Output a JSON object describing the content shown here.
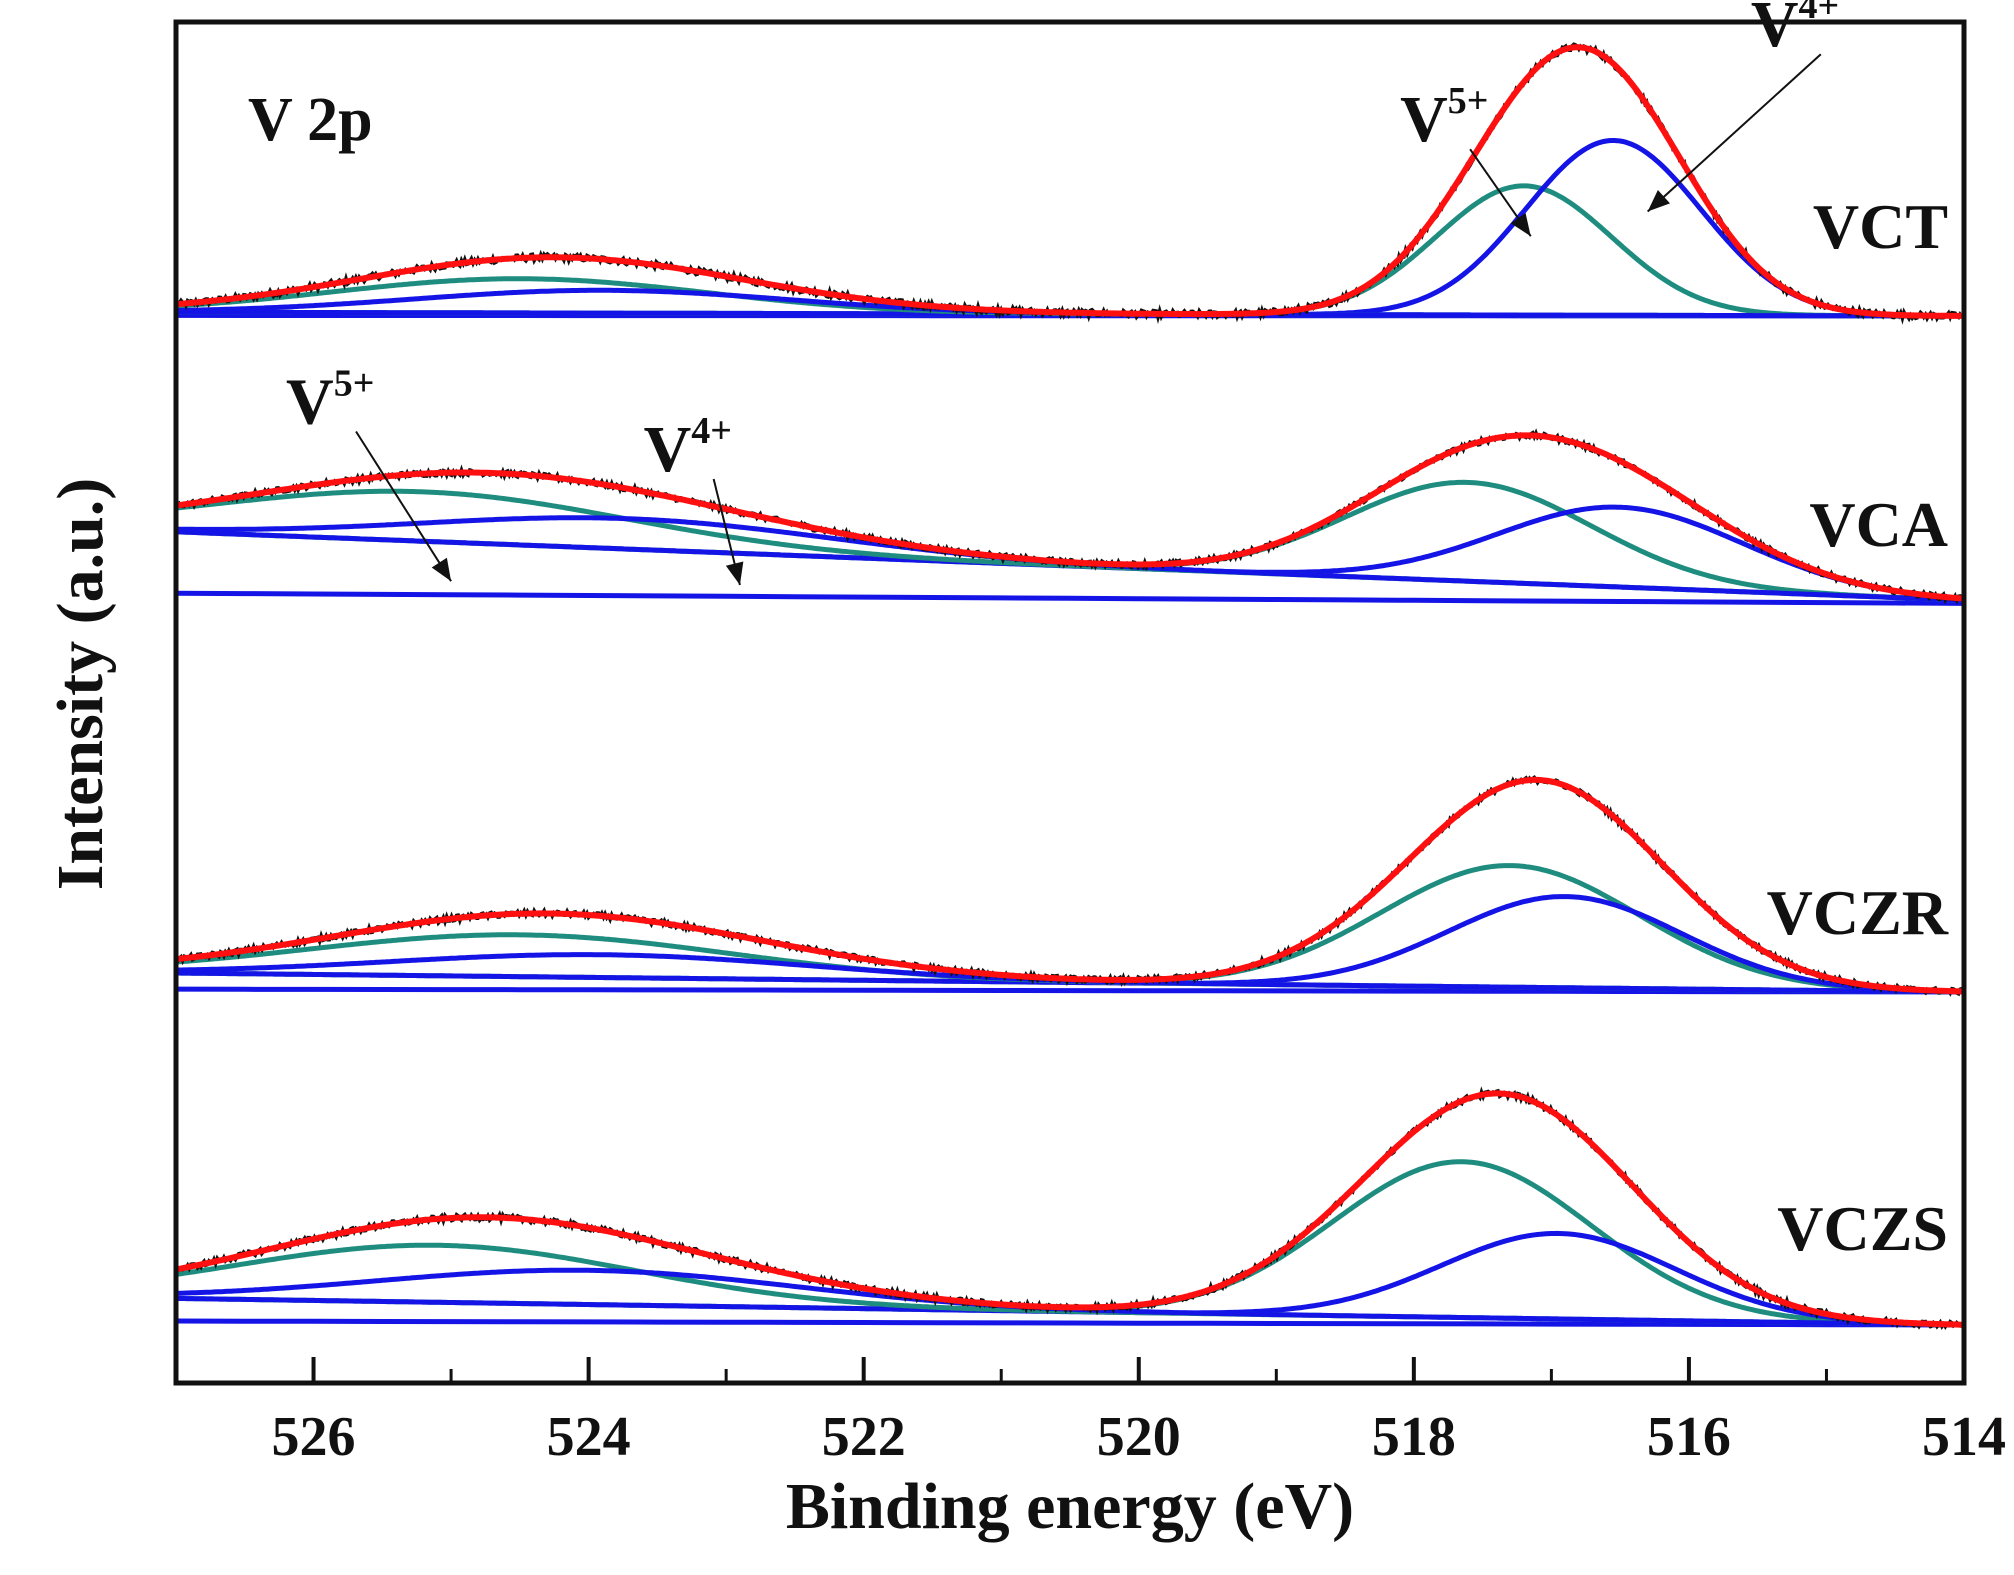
{
  "chart_data": {
    "type": "line",
    "title": "V 2p",
    "xlabel": "Binding energy (eV)",
    "ylabel": "Intensity (a.u.)",
    "xlim": [
      527,
      514
    ],
    "x_reversed": true,
    "ticks": [
      526,
      524,
      522,
      520,
      518,
      516,
      514
    ],
    "minor_ticks": [
      527,
      525,
      523,
      521,
      519,
      517,
      515
    ],
    "y_ticks_shown": false,
    "colors": {
      "experimental": "#111111",
      "fit_envelope": "#ff1010",
      "V5+": "#1e8c7e",
      "V4+": "#1414e6",
      "baseline": "#1414e6"
    },
    "component_legend": [
      "V5+",
      "V4+"
    ],
    "panels": [
      {
        "sample": "VCT",
        "baseline_from": 0.02,
        "baseline_to": 0.0,
        "noise": 0.018,
        "components": [
          {
            "name": "V5+",
            "center": 517.2,
            "height": 0.68,
            "fwhm": 1.5
          },
          {
            "name": "V4+",
            "center": 516.55,
            "height": 0.92,
            "fwhm": 1.5
          },
          {
            "name": "V5+",
            "center": 524.5,
            "height": 0.18,
            "fwhm": 3.2
          },
          {
            "name": "V4+",
            "center": 523.9,
            "height": 0.12,
            "fwhm": 3.2
          }
        ],
        "annotations": [
          {
            "label": "V",
            "sup": "5+",
            "text_at": [
              518.1,
              0.92
            ],
            "arrow_to": [
              517.15,
              0.42
            ]
          },
          {
            "label": "V",
            "sup": "4+",
            "text_at": [
              515.55,
              1.42
            ],
            "arrow_to": [
              516.3,
              0.55
            ]
          }
        ]
      },
      {
        "sample": "VCA",
        "baseline_from": 0.38,
        "baseline_to": 0.02,
        "noise": 0.015,
        "components": [
          {
            "name": "V5+",
            "center": 517.6,
            "height": 0.52,
            "fwhm": 2.1
          },
          {
            "name": "V4+",
            "center": 516.5,
            "height": 0.42,
            "fwhm": 2.1
          },
          {
            "name": "V5+",
            "center": 525.2,
            "height": 0.26,
            "fwhm": 3.5
          },
          {
            "name": "V4+",
            "center": 523.7,
            "height": 0.16,
            "fwhm": 3.5
          }
        ],
        "annotations": [
          {
            "label": "V",
            "sup": "5+",
            "text_at": [
              526.2,
              0.95
            ],
            "arrow_to": [
              525.0,
              0.12
            ]
          },
          {
            "label": "V",
            "sup": "4+",
            "text_at": [
              523.6,
              0.7
            ],
            "arrow_to": [
              522.9,
              0.1
            ]
          }
        ]
      },
      {
        "sample": "VCZR",
        "baseline_from": 0.1,
        "baseline_to": 0.0,
        "noise": 0.015,
        "components": [
          {
            "name": "V5+",
            "center": 517.3,
            "height": 0.64,
            "fwhm": 2.2
          },
          {
            "name": "V4+",
            "center": 516.9,
            "height": 0.48,
            "fwhm": 2.0
          },
          {
            "name": "V5+",
            "center": 524.5,
            "height": 0.22,
            "fwhm": 3.6
          },
          {
            "name": "V4+",
            "center": 523.9,
            "height": 0.12,
            "fwhm": 3.6
          }
        ],
        "annotations": []
      },
      {
        "sample": "VCZS",
        "baseline_from": 0.14,
        "baseline_to": 0.0,
        "noise": 0.016,
        "components": [
          {
            "name": "V5+",
            "center": 517.65,
            "height": 0.82,
            "fwhm": 2.2
          },
          {
            "name": "V4+",
            "center": 516.95,
            "height": 0.45,
            "fwhm": 2.0
          },
          {
            "name": "V5+",
            "center": 525.1,
            "height": 0.3,
            "fwhm": 3.4
          },
          {
            "name": "V4+",
            "center": 524.0,
            "height": 0.18,
            "fwhm": 3.6
          }
        ],
        "annotations": []
      }
    ]
  }
}
